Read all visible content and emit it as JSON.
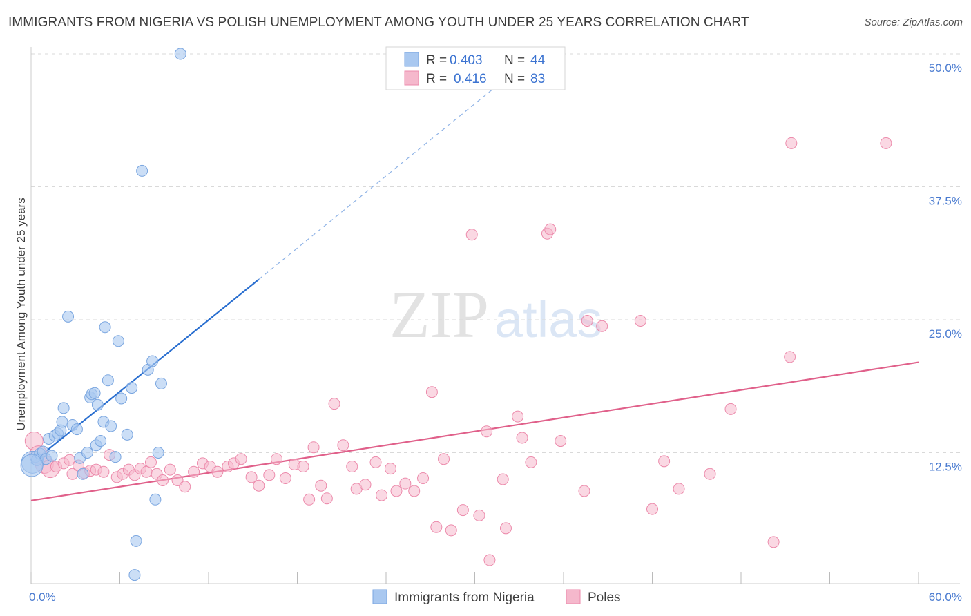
{
  "title": "IMMIGRANTS FROM NIGERIA VS POLISH UNEMPLOYMENT AMONG YOUTH UNDER 25 YEARS CORRELATION CHART",
  "source": "Source: ZipAtlas.com",
  "watermark": {
    "zip": "ZIP",
    "atlas": "atlas"
  },
  "colors": {
    "blue_fill": "#a9c8f0",
    "blue_stroke": "#7aa6e0",
    "blue_line": "#2a6fd0",
    "pink_fill": "#f5b8cc",
    "pink_stroke": "#ec8aab",
    "pink_line": "#e0608a",
    "tick_text": "#4a7bd0",
    "grid": "#d9d9d9"
  },
  "legend": {
    "rows": [
      {
        "r_label": "R =",
        "r_value": "0.403",
        "n_label": "N =",
        "n_value": "44"
      },
      {
        "r_label": "R =",
        "r_value": "0.416",
        "n_label": "N =",
        "n_value": "83"
      }
    ]
  },
  "bottom_legend": [
    "Immigrants from Nigeria",
    "Poles"
  ],
  "chart_data": {
    "type": "scatter",
    "title": "IMMIGRANTS FROM NIGERIA VS POLISH UNEMPLOYMENT AMONG YOUTH UNDER 25 YEARS CORRELATION CHART",
    "xlabel": "",
    "ylabel": "Unemployment Among Youth under 25 years",
    "xlim": [
      0,
      60
    ],
    "ylim": [
      0,
      50
    ],
    "x_tick_labels": [
      "0.0%",
      "60.0%"
    ],
    "y_ticks": [
      12.5,
      25.0,
      37.5,
      50.0
    ],
    "y_tick_labels": [
      "12.5%",
      "25.0%",
      "37.5%",
      "50.0%"
    ],
    "grid": true,
    "legend_placement": "top-center",
    "series": [
      {
        "name": "Immigrants from Nigeria",
        "r": 0.403,
        "n": 44,
        "trend": {
          "x": [
            0,
            15.4
          ],
          "y": [
            11.5,
            28.8
          ],
          "extended_x": [
            15.4,
            31.5
          ],
          "extended_y": [
            28.8,
            47.0
          ]
        },
        "points": [
          [
            0.1,
            11.6
          ],
          [
            0.3,
            12.1
          ],
          [
            0.4,
            11.8
          ],
          [
            0.6,
            12.4
          ],
          [
            0.8,
            12.6
          ],
          [
            1.0,
            11.9
          ],
          [
            1.2,
            13.8
          ],
          [
            1.4,
            12.2
          ],
          [
            1.6,
            14.1
          ],
          [
            1.8,
            14.3
          ],
          [
            2.0,
            14.6
          ],
          [
            2.1,
            15.4
          ],
          [
            2.2,
            16.7
          ],
          [
            2.5,
            25.3
          ],
          [
            2.8,
            15.1
          ],
          [
            3.1,
            14.7
          ],
          [
            3.3,
            12.0
          ],
          [
            3.5,
            10.5
          ],
          [
            3.8,
            12.5
          ],
          [
            4.0,
            17.7
          ],
          [
            4.1,
            18.0
          ],
          [
            4.3,
            18.1
          ],
          [
            4.4,
            13.2
          ],
          [
            4.5,
            17.0
          ],
          [
            4.7,
            13.6
          ],
          [
            4.9,
            15.4
          ],
          [
            5.0,
            24.3
          ],
          [
            5.2,
            19.3
          ],
          [
            5.4,
            15.0
          ],
          [
            5.7,
            12.1
          ],
          [
            5.9,
            23.0
          ],
          [
            6.1,
            17.6
          ],
          [
            6.5,
            14.2
          ],
          [
            6.8,
            18.6
          ],
          [
            7.0,
            1.0
          ],
          [
            7.1,
            4.2
          ],
          [
            7.5,
            39.0
          ],
          [
            7.9,
            20.3
          ],
          [
            8.2,
            21.1
          ],
          [
            8.4,
            8.1
          ],
          [
            8.6,
            12.5
          ],
          [
            8.8,
            19.0
          ],
          [
            10.1,
            50.0
          ],
          [
            0.05,
            11.3
          ]
        ]
      },
      {
        "name": "Poles",
        "r": 0.416,
        "n": 83,
        "trend": {
          "x": [
            0,
            60
          ],
          "y": [
            8.0,
            21.0
          ]
        },
        "points": [
          [
            0.2,
            13.6
          ],
          [
            0.5,
            12.3
          ],
          [
            0.9,
            11.4
          ],
          [
            1.3,
            11.0
          ],
          [
            1.7,
            11.2
          ],
          [
            2.2,
            11.5
          ],
          [
            2.6,
            11.8
          ],
          [
            2.8,
            10.5
          ],
          [
            3.2,
            11.3
          ],
          [
            3.6,
            10.6
          ],
          [
            4.0,
            10.8
          ],
          [
            4.4,
            10.9
          ],
          [
            4.9,
            10.7
          ],
          [
            5.3,
            12.3
          ],
          [
            5.8,
            10.2
          ],
          [
            6.2,
            10.5
          ],
          [
            6.6,
            10.9
          ],
          [
            7.0,
            10.4
          ],
          [
            7.4,
            11.0
          ],
          [
            7.8,
            10.7
          ],
          [
            8.1,
            11.6
          ],
          [
            8.5,
            10.5
          ],
          [
            8.9,
            9.9
          ],
          [
            9.4,
            10.9
          ],
          [
            9.9,
            9.9
          ],
          [
            10.4,
            9.3
          ],
          [
            11.0,
            10.7
          ],
          [
            11.6,
            11.5
          ],
          [
            12.1,
            11.2
          ],
          [
            12.6,
            10.7
          ],
          [
            13.3,
            11.2
          ],
          [
            13.7,
            11.5
          ],
          [
            14.2,
            11.9
          ],
          [
            14.9,
            10.2
          ],
          [
            15.4,
            9.4
          ],
          [
            16.1,
            10.4
          ],
          [
            16.6,
            11.9
          ],
          [
            17.2,
            10.1
          ],
          [
            17.8,
            11.4
          ],
          [
            18.4,
            11.2
          ],
          [
            18.8,
            8.1
          ],
          [
            19.1,
            13.0
          ],
          [
            19.6,
            9.4
          ],
          [
            20.0,
            8.2
          ],
          [
            20.5,
            17.1
          ],
          [
            21.1,
            13.2
          ],
          [
            21.7,
            11.2
          ],
          [
            22.0,
            9.1
          ],
          [
            22.6,
            9.5
          ],
          [
            23.3,
            11.6
          ],
          [
            23.7,
            8.5
          ],
          [
            24.3,
            11.0
          ],
          [
            24.7,
            8.9
          ],
          [
            25.3,
            9.6
          ],
          [
            25.9,
            8.9
          ],
          [
            26.5,
            10.1
          ],
          [
            27.1,
            18.2
          ],
          [
            27.4,
            5.5
          ],
          [
            27.9,
            11.9
          ],
          [
            28.4,
            5.2
          ],
          [
            29.2,
            7.1
          ],
          [
            29.8,
            33.0
          ],
          [
            30.3,
            6.6
          ],
          [
            30.8,
            14.5
          ],
          [
            31.0,
            2.4
          ],
          [
            31.9,
            10.0
          ],
          [
            32.1,
            5.4
          ],
          [
            32.9,
            15.9
          ],
          [
            33.2,
            13.9
          ],
          [
            33.8,
            11.6
          ],
          [
            34.9,
            33.1
          ],
          [
            35.1,
            33.5
          ],
          [
            35.8,
            13.6
          ],
          [
            37.4,
            8.9
          ],
          [
            37.6,
            24.9
          ],
          [
            38.6,
            24.4
          ],
          [
            41.2,
            24.9
          ],
          [
            42.0,
            7.2
          ],
          [
            42.8,
            11.7
          ],
          [
            43.8,
            9.1
          ],
          [
            45.9,
            10.5
          ],
          [
            47.3,
            16.6
          ],
          [
            50.2,
            4.1
          ]
        ],
        "extra_points": [
          [
            51.3,
            21.5
          ],
          [
            51.4,
            41.6
          ],
          [
            57.8,
            41.6
          ]
        ]
      }
    ]
  }
}
